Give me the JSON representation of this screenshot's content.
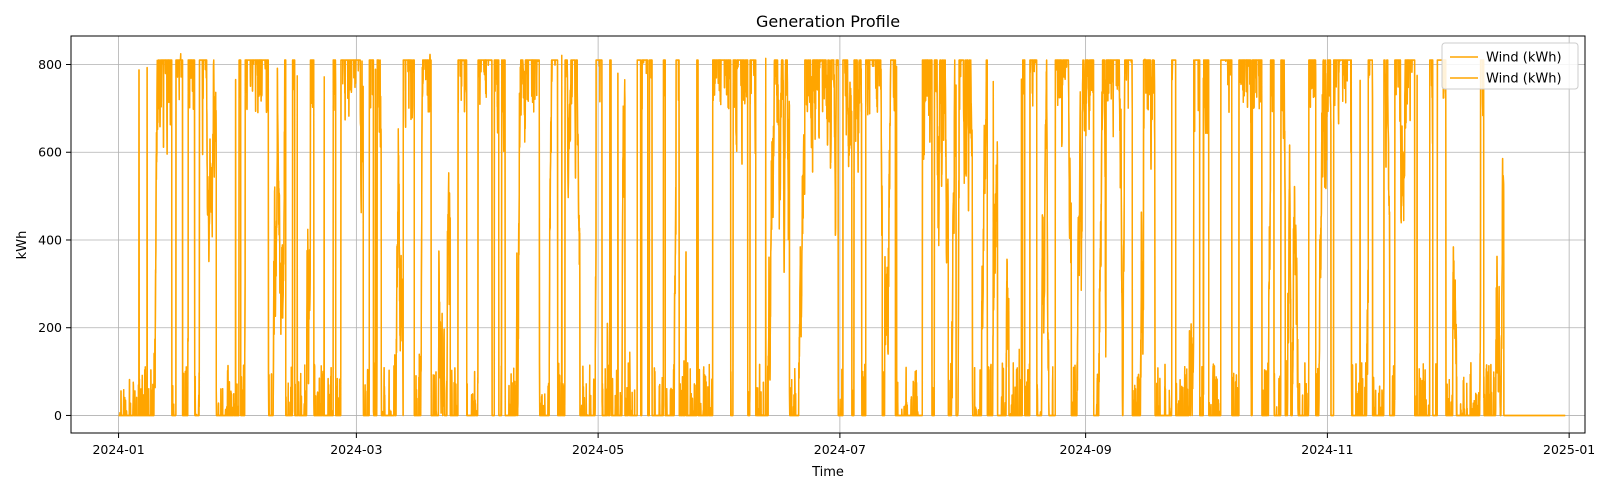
{
  "chart_data": {
    "type": "line",
    "title": "Generation Profile",
    "xlabel": "Time",
    "ylabel": "kWh",
    "x_range": [
      "2023-12-20",
      "2025-01-05"
    ],
    "ylim": [
      -40,
      865
    ],
    "x_ticks": [
      "2024-01",
      "2024-03",
      "2024-05",
      "2024-07",
      "2024-09",
      "2024-11",
      "2025-01"
    ],
    "y_ticks": [
      0,
      200,
      400,
      600,
      800
    ],
    "grid": true,
    "legend_position": "top-right",
    "line_color": "#FFA500",
    "series": [
      {
        "name": "Wind (kWh)",
        "color": "#FFA500",
        "x_start": "2024-01-01",
        "x_end": "2024-12-31",
        "sampling": "hourly",
        "value_range": [
          0,
          825
        ],
        "notes_visible": "dense fluctuations between 0 and ~810 kWh through mid-December, then flat at 0 until year end"
      },
      {
        "name": "Wind (kWh)",
        "color": "#FFA500",
        "x_start": "2024-01-01",
        "x_end": "2024-12-31",
        "sampling": "hourly",
        "value_range": [
          0,
          825
        ],
        "notes_visible": "overlaps first series"
      }
    ],
    "active_until": "2024-12-15",
    "cap_value": 810,
    "peak_value": 825
  }
}
